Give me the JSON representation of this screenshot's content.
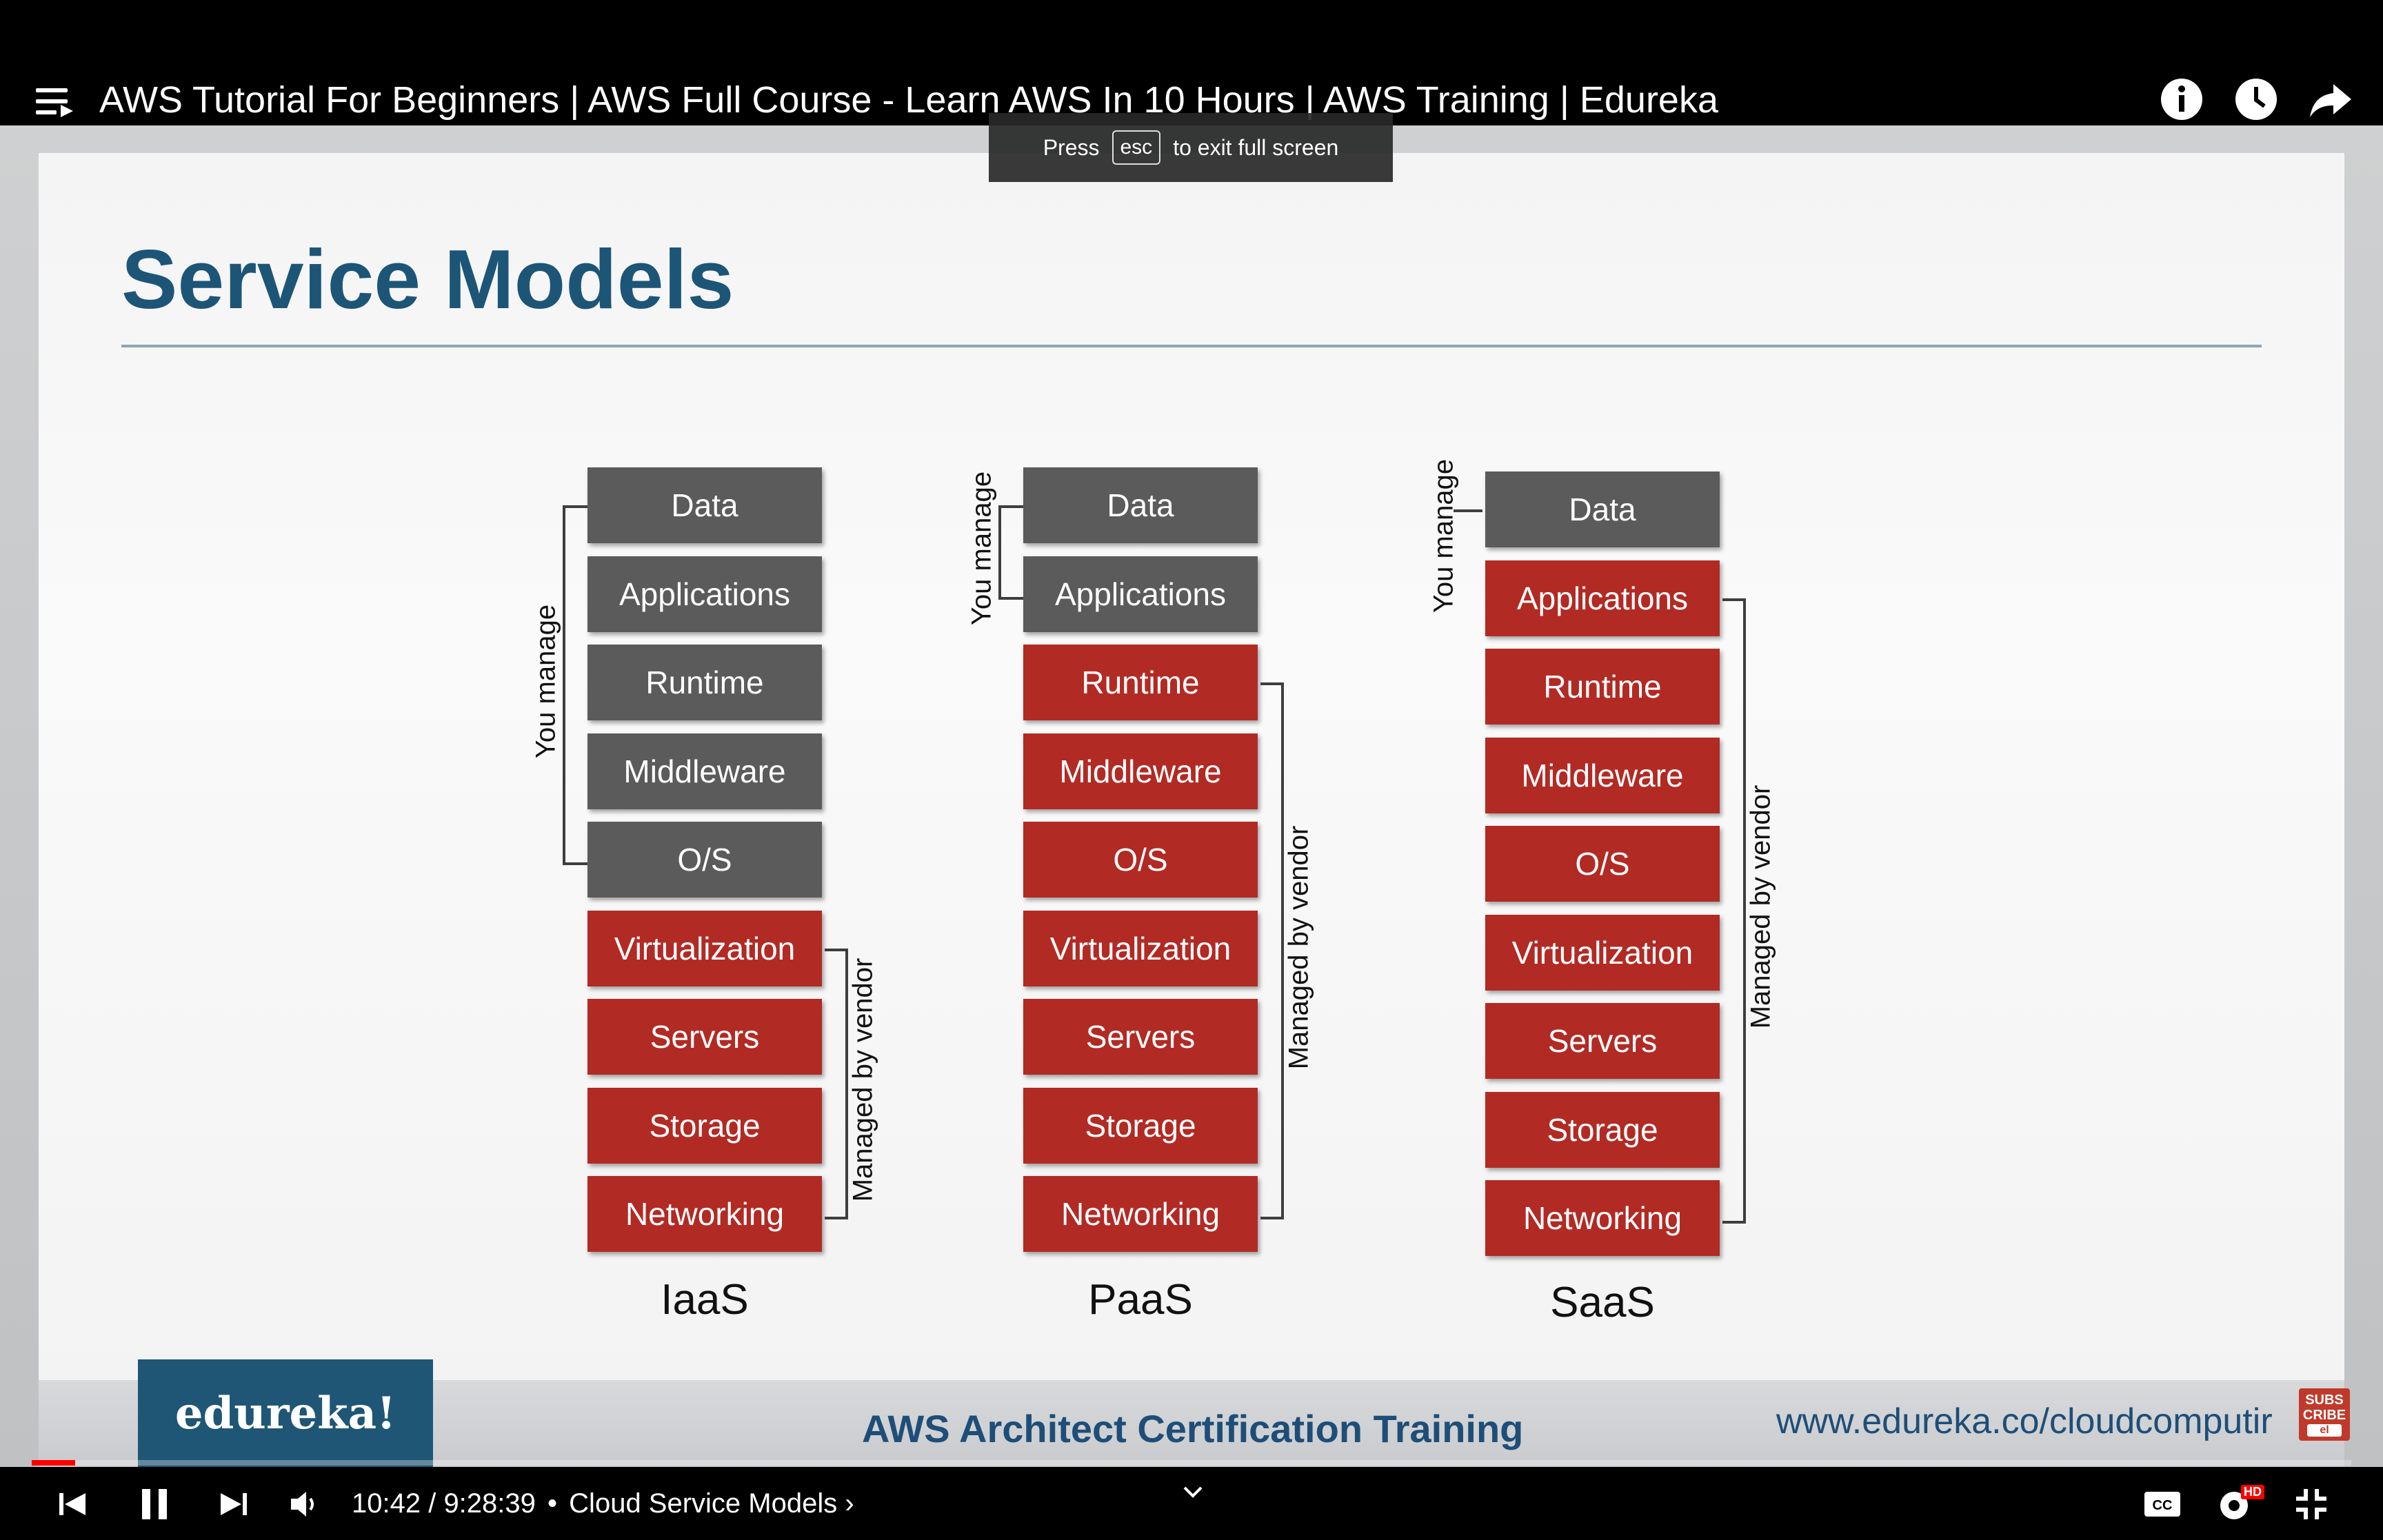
{
  "window": {
    "title": "AWS Tutorial For Beginners | AWS Full Course - Learn AWS In 10 Hours | AWS Training | Edureka"
  },
  "toast": {
    "press": "Press",
    "key": "esc",
    "rest": "to exit full screen"
  },
  "slide": {
    "title": "Service Models",
    "you_manage": "You manage",
    "managed_by_vendor": "Managed by vendor",
    "columns": [
      {
        "label": "IaaS",
        "layers": [
          "Data",
          "Applications",
          "Runtime",
          "Middleware",
          "O/S",
          "Virtualization",
          "Servers",
          "Storage",
          "Networking"
        ],
        "you_manage_count": 5
      },
      {
        "label": "PaaS",
        "layers": [
          "Data",
          "Applications",
          "Runtime",
          "Middleware",
          "O/S",
          "Virtualization",
          "Servers",
          "Storage",
          "Networking"
        ],
        "you_manage_count": 2
      },
      {
        "label": "SaaS",
        "layers": [
          "Data",
          "Applications",
          "Runtime",
          "Middleware",
          "O/S",
          "Virtualization",
          "Servers",
          "Storage",
          "Networking"
        ],
        "you_manage_count": 1
      }
    ],
    "colors": {
      "you_manage": "#5b5b5b",
      "vendor": "#b22a24",
      "title": "#1d5577"
    }
  },
  "banner": {
    "logo": "edureka!",
    "center": "AWS Architect Certification Training",
    "right": "www.edureka.co/cloudcomputir",
    "subscribe_lines": [
      "SUBS",
      "CRIBE",
      "el"
    ]
  },
  "player": {
    "time": "10:42 / 9:28:39",
    "separator": "•",
    "chapter": "Cloud Service Models",
    "chapter_chevron": "›",
    "progress": 0.0188,
    "hd_badge": "HD",
    "accent": "#ff0000"
  },
  "icons": [
    "menu-icon",
    "info-icon",
    "watch-later-icon",
    "share-icon",
    "previous-icon",
    "pause-icon",
    "next-icon",
    "volume-icon",
    "chevron-down-icon",
    "captions-icon",
    "settings-icon",
    "exit-fullscreen-icon"
  ]
}
